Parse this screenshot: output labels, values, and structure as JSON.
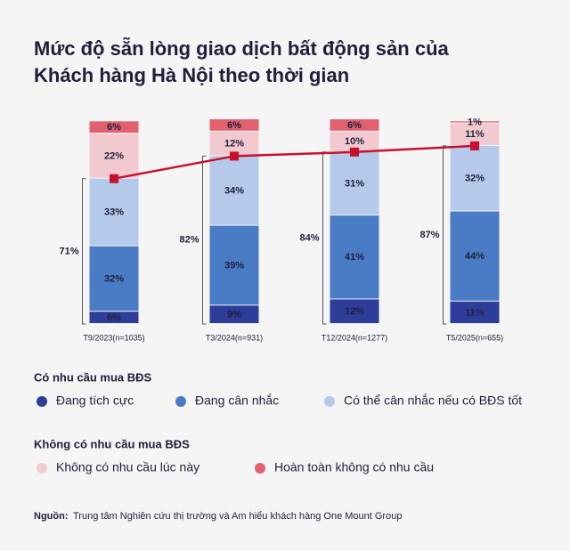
{
  "chart_data": {
    "type": "stacked_bar_line",
    "title": [
      "Mức độ sẵn lòng giao dịch bất động sản của",
      "Khách hàng Hà Nội theo thời gian"
    ],
    "categories": [
      "T9/2023(n=1035)",
      "T3/2024(n=931)",
      "T12/2024(n=1277)",
      "T5/2025(n=655)"
    ],
    "ylim": [
      0,
      100
    ],
    "series": [
      {
        "name": "Đang tích cực",
        "color": "#2e3c9a",
        "values": [
          6,
          9,
          12,
          11
        ],
        "value_labels": [
          "6%",
          "9%",
          "12%",
          "11%"
        ]
      },
      {
        "name": "Đang cân nhắc",
        "color": "#4a7cc6",
        "values": [
          32,
          39,
          41,
          44
        ],
        "value_labels": [
          "32%",
          "39%",
          "41%",
          "44%"
        ]
      },
      {
        "name": "Có thể cân nhắc nếu có BĐS tốt",
        "color": "#b5c9ea",
        "values": [
          33,
          34,
          31,
          32
        ],
        "value_labels": [
          "33%",
          "34%",
          "31%",
          "32%"
        ]
      },
      {
        "name": "Không có nhu cầu lúc này",
        "color": "#f3c9d0",
        "values": [
          22,
          12,
          10,
          11
        ],
        "value_labels": [
          "22%",
          "12%",
          "10%",
          "11%"
        ]
      },
      {
        "name": "Hoàn toàn không có nhu cầu",
        "color": "#e2616f",
        "values": [
          6,
          6,
          6,
          1
        ],
        "value_labels": [
          "6%",
          "6%",
          "6%",
          "1%"
        ]
      }
    ],
    "totals": {
      "color": "#c8102e",
      "values": [
        71,
        82,
        84,
        87
      ],
      "value_labels": [
        "71%",
        "82%",
        "84%",
        "87%"
      ]
    },
    "legend_groups": [
      "Có nhu cầu mua BĐS",
      "Không có nhu cầu mua BĐS"
    ],
    "source_label": "Nguồn:",
    "source": "Trung tâm Nghiên cứu thị trường và Am hiểu khách hàng One Mount Group"
  }
}
